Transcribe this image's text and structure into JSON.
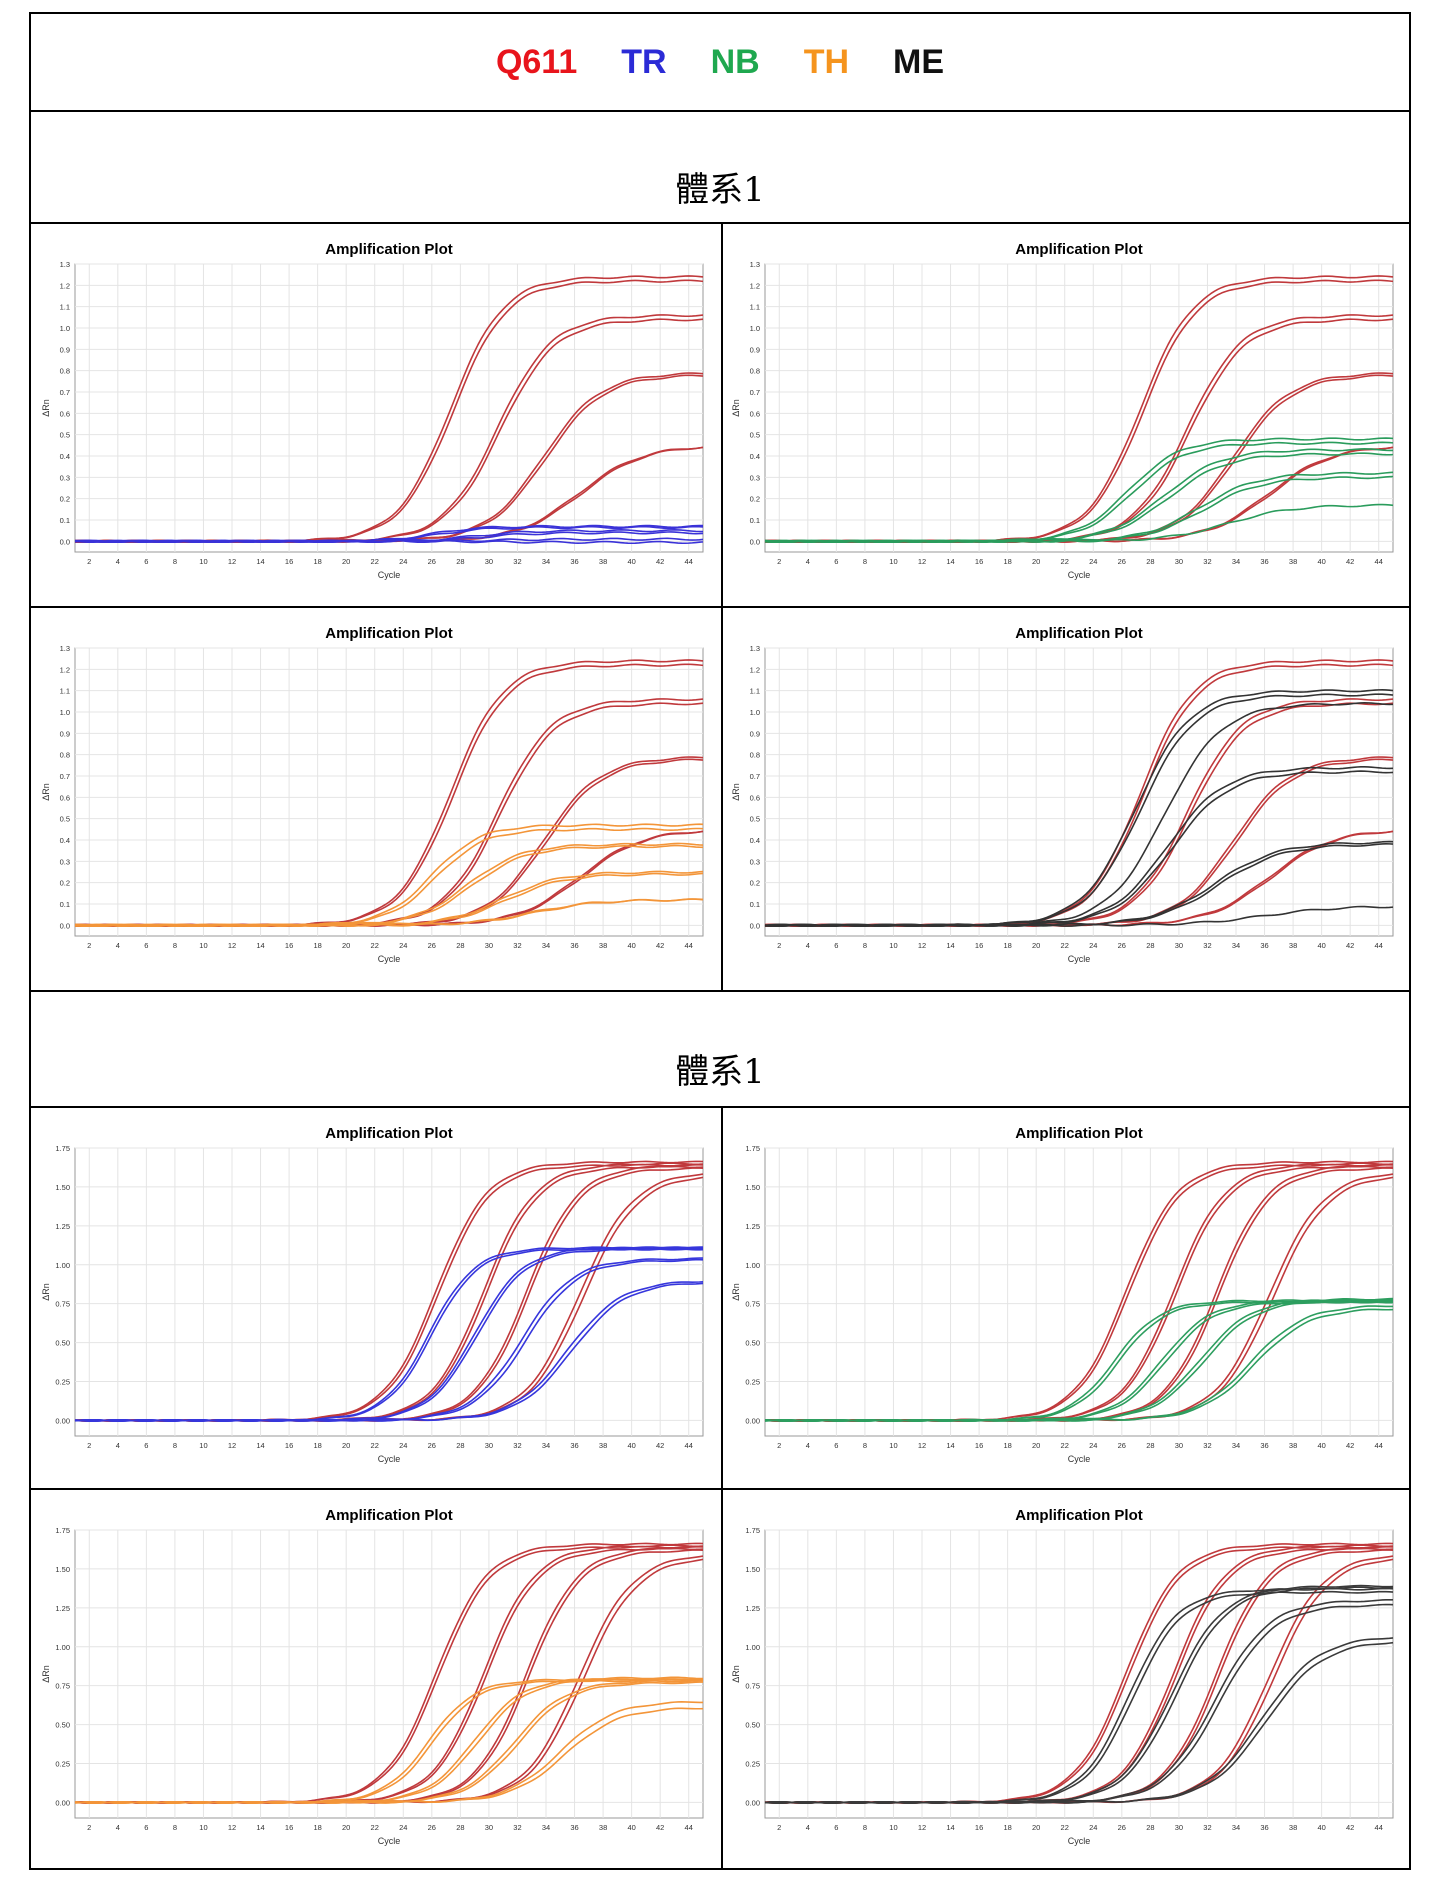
{
  "legend": {
    "items": [
      {
        "label": "Q611",
        "color": "#e8141c"
      },
      {
        "label": "TR",
        "color": "#2b2bd6"
      },
      {
        "label": "NB",
        "color": "#1fa84f"
      },
      {
        "label": "TH",
        "color": "#f5941e"
      },
      {
        "label": "ME",
        "color": "#111111"
      }
    ]
  },
  "sections": [
    {
      "title": "體系1"
    },
    {
      "title": "體系1"
    }
  ],
  "chart_data": [
    {
      "type": "line",
      "title": "Amplification Plot",
      "xlabel": "Cycle",
      "ylabel": "ΔRn",
      "xlim": [
        1,
        45
      ],
      "ylim": [
        -0.05,
        1.3
      ],
      "xticks": [
        "2",
        "4",
        "6",
        "8",
        "10",
        "12",
        "14",
        "16",
        "18",
        "20",
        "22",
        "24",
        "26",
        "28",
        "30",
        "32",
        "34",
        "36",
        "38",
        "40",
        "42",
        "44"
      ],
      "yticks": [
        "0.0",
        "0.1",
        "0.2",
        "0.3",
        "0.4",
        "0.5",
        "0.6",
        "0.7",
        "0.8",
        "0.9",
        "1.0",
        "1.1",
        "1.2",
        "1.3"
      ],
      "grid": true,
      "series": [
        {
          "group": "Q611",
          "color": "#c0393c",
          "curves": [
            [
              1.22,
              27.5,
              1.85
            ],
            [
              1.24,
              27.3,
              1.85
            ],
            [
              1.04,
              30.8,
              1.9
            ],
            [
              1.06,
              30.6,
              1.9
            ],
            [
              0.78,
              34.0,
              2.0
            ],
            [
              0.79,
              33.8,
              2.0
            ],
            [
              0.45,
              36.5,
              2.2
            ],
            [
              0.45,
              36.3,
              2.2
            ]
          ]
        },
        {
          "group": "TR",
          "color": "#3a32d8",
          "curves": [
            [
              0.07,
              26.0,
              1.6
            ],
            [
              0.065,
              26.5,
              1.6
            ],
            [
              0.05,
              29.0,
              1.8
            ],
            [
              0.04,
              29.5,
              1.8
            ],
            [
              0.01,
              30.0,
              2.0
            ],
            [
              -0.005,
              31.0,
              2.0
            ]
          ]
        }
      ]
    },
    {
      "type": "line",
      "title": "Amplification Plot",
      "xlabel": "Cycle",
      "ylabel": "ΔRn",
      "xlim": [
        1,
        45
      ],
      "ylim": [
        -0.05,
        1.3
      ],
      "xticks": [
        "2",
        "4",
        "6",
        "8",
        "10",
        "12",
        "14",
        "16",
        "18",
        "20",
        "22",
        "24",
        "26",
        "28",
        "30",
        "32",
        "34",
        "36",
        "38",
        "40",
        "42",
        "44"
      ],
      "yticks": [
        "0.0",
        "0.1",
        "0.2",
        "0.3",
        "0.4",
        "0.5",
        "0.6",
        "0.7",
        "0.8",
        "0.9",
        "1.0",
        "1.1",
        "1.2",
        "1.3"
      ],
      "grid": true,
      "series": [
        {
          "group": "Q611",
          "color": "#c0393c",
          "curves": [
            [
              1.22,
              27.5,
              1.85
            ],
            [
              1.24,
              27.3,
              1.85
            ],
            [
              1.04,
              30.8,
              1.9
            ],
            [
              1.06,
              30.6,
              1.9
            ],
            [
              0.78,
              34.0,
              2.0
            ],
            [
              0.79,
              33.8,
              2.0
            ],
            [
              0.45,
              36.5,
              2.2
            ],
            [
              0.45,
              36.3,
              2.2
            ]
          ]
        },
        {
          "group": "NB",
          "color": "#2a9c5c",
          "curves": [
            [
              0.48,
              26.5,
              1.8
            ],
            [
              0.46,
              26.8,
              1.8
            ],
            [
              0.43,
              29.0,
              2.0
            ],
            [
              0.41,
              29.3,
              2.0
            ],
            [
              0.32,
              31.5,
              2.0
            ],
            [
              0.3,
              31.8,
              2.0
            ],
            [
              0.17,
              33.5,
              2.2
            ]
          ]
        }
      ]
    },
    {
      "type": "line",
      "title": "Amplification Plot",
      "xlabel": "Cycle",
      "ylabel": "ΔRn",
      "xlim": [
        1,
        45
      ],
      "ylim": [
        -0.05,
        1.3
      ],
      "xticks": [
        "2",
        "4",
        "6",
        "8",
        "10",
        "12",
        "14",
        "16",
        "18",
        "20",
        "22",
        "24",
        "26",
        "28",
        "30",
        "32",
        "34",
        "36",
        "38",
        "40",
        "42",
        "44"
      ],
      "yticks": [
        "0.0",
        "0.1",
        "0.2",
        "0.3",
        "0.4",
        "0.5",
        "0.6",
        "0.7",
        "0.8",
        "0.9",
        "1.0",
        "1.1",
        "1.2",
        "1.3"
      ],
      "grid": true,
      "series": [
        {
          "group": "Q611",
          "color": "#c0393c",
          "curves": [
            [
              1.22,
              27.5,
              1.85
            ],
            [
              1.24,
              27.3,
              1.85
            ],
            [
              1.04,
              30.8,
              1.9
            ],
            [
              1.06,
              30.6,
              1.9
            ],
            [
              0.78,
              34.0,
              2.0
            ],
            [
              0.79,
              33.8,
              2.0
            ],
            [
              0.45,
              36.5,
              2.2
            ],
            [
              0.45,
              36.3,
              2.2
            ]
          ]
        },
        {
          "group": "TH",
          "color": "#f39539",
          "curves": [
            [
              0.47,
              26.0,
              1.7
            ],
            [
              0.45,
              26.3,
              1.7
            ],
            [
              0.38,
              28.5,
              1.9
            ],
            [
              0.37,
              28.8,
              1.9
            ],
            [
              0.25,
              31.0,
              2.0
            ],
            [
              0.24,
              31.3,
              2.0
            ],
            [
              0.12,
              33.0,
              2.2
            ],
            [
              0.12,
              33.3,
              2.2
            ]
          ]
        }
      ]
    },
    {
      "type": "line",
      "title": "Amplification Plot",
      "xlabel": "Cycle",
      "ylabel": "ΔRn",
      "xlim": [
        1,
        45
      ],
      "ylim": [
        -0.05,
        1.3
      ],
      "xticks": [
        "2",
        "4",
        "6",
        "8",
        "10",
        "12",
        "14",
        "16",
        "18",
        "20",
        "22",
        "24",
        "26",
        "28",
        "30",
        "32",
        "34",
        "36",
        "38",
        "40",
        "42",
        "44"
      ],
      "yticks": [
        "0.0",
        "0.1",
        "0.2",
        "0.3",
        "0.4",
        "0.5",
        "0.6",
        "0.7",
        "0.8",
        "0.9",
        "1.0",
        "1.1",
        "1.2",
        "1.3"
      ],
      "grid": true,
      "series": [
        {
          "group": "Q611",
          "color": "#c0393c",
          "curves": [
            [
              1.22,
              27.5,
              1.85
            ],
            [
              1.24,
              27.3,
              1.85
            ],
            [
              1.04,
              30.8,
              1.9
            ],
            [
              1.06,
              30.6,
              1.9
            ],
            [
              0.78,
              34.0,
              2.0
            ],
            [
              0.79,
              33.8,
              2.0
            ],
            [
              0.45,
              36.5,
              2.2
            ],
            [
              0.45,
              36.3,
              2.2
            ]
          ]
        },
        {
          "group": "ME",
          "color": "#333333",
          "curves": [
            [
              1.1,
              27.0,
              1.9
            ],
            [
              1.08,
              27.3,
              1.9
            ],
            [
              1.04,
              29.0,
              2.0
            ],
            [
              0.74,
              29.2,
              2.0
            ],
            [
              0.72,
              29.5,
              2.0
            ],
            [
              0.39,
              32.5,
              2.2
            ],
            [
              0.38,
              32.8,
              2.2
            ],
            [
              0.09,
              36.0,
              2.5
            ]
          ]
        }
      ]
    },
    {
      "type": "line",
      "title": "Amplification Plot",
      "xlabel": "Cycle",
      "ylabel": "ΔRn",
      "xlim": [
        1,
        45
      ],
      "ylim": [
        -0.1,
        1.75
      ],
      "xticks": [
        "2",
        "4",
        "6",
        "8",
        "10",
        "12",
        "14",
        "16",
        "18",
        "20",
        "22",
        "24",
        "26",
        "28",
        "30",
        "32",
        "34",
        "36",
        "38",
        "40",
        "42",
        "44"
      ],
      "yticks": [
        "0.00",
        "0.25",
        "0.50",
        "0.75",
        "1.00",
        "1.25",
        "1.50",
        "1.75"
      ],
      "grid": true,
      "series": [
        {
          "group": "Q611",
          "color": "#c0393c",
          "curves": [
            [
              1.64,
              26.5,
              1.8
            ],
            [
              1.66,
              26.3,
              1.8
            ],
            [
              1.63,
              29.8,
              1.8
            ],
            [
              1.65,
              29.6,
              1.8
            ],
            [
              1.62,
              32.8,
              1.8
            ],
            [
              1.64,
              32.6,
              1.8
            ],
            [
              1.6,
              36.3,
              1.9
            ],
            [
              1.58,
              36.6,
              1.9
            ]
          ]
        },
        {
          "group": "TR",
          "color": "#3636dc",
          "curves": [
            [
              1.11,
              25.8,
              1.6
            ],
            [
              1.1,
              26.0,
              1.6
            ],
            [
              1.11,
              29.0,
              1.7
            ],
            [
              1.1,
              29.2,
              1.7
            ],
            [
              1.04,
              32.3,
              1.8
            ],
            [
              1.03,
              32.6,
              1.8
            ],
            [
              0.9,
              35.5,
              1.9
            ],
            [
              0.89,
              35.8,
              1.9
            ]
          ]
        }
      ]
    },
    {
      "type": "line",
      "title": "Amplification Plot",
      "xlabel": "Cycle",
      "ylabel": "ΔRn",
      "xlim": [
        1,
        45
      ],
      "ylim": [
        -0.1,
        1.75
      ],
      "xticks": [
        "2",
        "4",
        "6",
        "8",
        "10",
        "12",
        "14",
        "16",
        "18",
        "20",
        "22",
        "24",
        "26",
        "28",
        "30",
        "32",
        "34",
        "36",
        "38",
        "40",
        "42",
        "44"
      ],
      "yticks": [
        "0.00",
        "0.25",
        "0.50",
        "0.75",
        "1.00",
        "1.25",
        "1.50",
        "1.75"
      ],
      "grid": true,
      "series": [
        {
          "group": "Q611",
          "color": "#c0393c",
          "curves": [
            [
              1.64,
              26.5,
              1.8
            ],
            [
              1.66,
              26.3,
              1.8
            ],
            [
              1.63,
              29.8,
              1.8
            ],
            [
              1.65,
              29.6,
              1.8
            ],
            [
              1.62,
              32.8,
              1.8
            ],
            [
              1.64,
              32.6,
              1.8
            ],
            [
              1.6,
              36.3,
              1.9
            ],
            [
              1.58,
              36.6,
              1.9
            ]
          ]
        },
        {
          "group": "NB",
          "color": "#2d9e5f",
          "curves": [
            [
              0.77,
              25.5,
              1.6
            ],
            [
              0.76,
              25.8,
              1.6
            ],
            [
              0.77,
              28.8,
              1.7
            ],
            [
              0.76,
              29.1,
              1.7
            ],
            [
              0.78,
              31.5,
              1.8
            ],
            [
              0.77,
              31.8,
              1.8
            ],
            [
              0.74,
              35.0,
              1.9
            ],
            [
              0.72,
              35.3,
              1.9
            ]
          ]
        }
      ]
    },
    {
      "type": "line",
      "title": "Amplification Plot",
      "xlabel": "Cycle",
      "ylabel": "ΔRn",
      "xlim": [
        1,
        45
      ],
      "ylim": [
        -0.1,
        1.75
      ],
      "xticks": [
        "2",
        "4",
        "6",
        "8",
        "10",
        "12",
        "14",
        "16",
        "18",
        "20",
        "22",
        "24",
        "26",
        "28",
        "30",
        "32",
        "34",
        "36",
        "38",
        "40",
        "42",
        "44"
      ],
      "yticks": [
        "0.00",
        "0.25",
        "0.50",
        "0.75",
        "1.00",
        "1.25",
        "1.50",
        "1.75"
      ],
      "grid": true,
      "series": [
        {
          "group": "Q611",
          "color": "#c0393c",
          "curves": [
            [
              1.64,
              26.5,
              1.8
            ],
            [
              1.66,
              26.3,
              1.8
            ],
            [
              1.63,
              29.8,
              1.8
            ],
            [
              1.65,
              29.6,
              1.8
            ],
            [
              1.62,
              32.8,
              1.8
            ],
            [
              1.64,
              32.6,
              1.8
            ],
            [
              1.6,
              36.3,
              1.9
            ],
            [
              1.58,
              36.6,
              1.9
            ]
          ]
        },
        {
          "group": "TH",
          "color": "#f39539",
          "curves": [
            [
              0.79,
              25.8,
              1.6
            ],
            [
              0.78,
              26.1,
              1.6
            ],
            [
              0.8,
              29.0,
              1.7
            ],
            [
              0.79,
              29.3,
              1.7
            ],
            [
              0.78,
              31.8,
              1.8
            ],
            [
              0.77,
              32.1,
              1.8
            ],
            [
              0.65,
              35.0,
              1.9
            ],
            [
              0.61,
              35.3,
              1.9
            ]
          ]
        }
      ]
    },
    {
      "type": "line",
      "title": "Amplification Plot",
      "xlabel": "Cycle",
      "ylabel": "ΔRn",
      "xlim": [
        1,
        45
      ],
      "ylim": [
        -0.1,
        1.75
      ],
      "xticks": [
        "2",
        "4",
        "6",
        "8",
        "10",
        "12",
        "14",
        "16",
        "18",
        "20",
        "22",
        "24",
        "26",
        "28",
        "30",
        "32",
        "34",
        "36",
        "38",
        "40",
        "42",
        "44"
      ],
      "yticks": [
        "0.00",
        "0.25",
        "0.50",
        "0.75",
        "1.00",
        "1.25",
        "1.50",
        "1.75"
      ],
      "grid": true,
      "series": [
        {
          "group": "Q611",
          "color": "#c0393c",
          "curves": [
            [
              1.64,
              26.5,
              1.8
            ],
            [
              1.66,
              26.3,
              1.8
            ],
            [
              1.63,
              29.8,
              1.8
            ],
            [
              1.65,
              29.6,
              1.8
            ],
            [
              1.62,
              32.8,
              1.8
            ],
            [
              1.64,
              32.6,
              1.8
            ],
            [
              1.6,
              36.3,
              1.9
            ],
            [
              1.58,
              36.6,
              1.9
            ]
          ]
        },
        {
          "group": "ME",
          "color": "#3a3a3a",
          "curves": [
            [
              1.37,
              26.5,
              1.7
            ],
            [
              1.35,
              26.8,
              1.7
            ],
            [
              1.39,
              29.5,
              1.8
            ],
            [
              1.38,
              29.8,
              1.8
            ],
            [
              1.3,
              32.5,
              1.9
            ],
            [
              1.27,
              32.8,
              1.9
            ],
            [
              1.07,
              35.8,
              2.0
            ],
            [
              1.04,
              36.1,
              2.0
            ]
          ]
        }
      ]
    }
  ]
}
